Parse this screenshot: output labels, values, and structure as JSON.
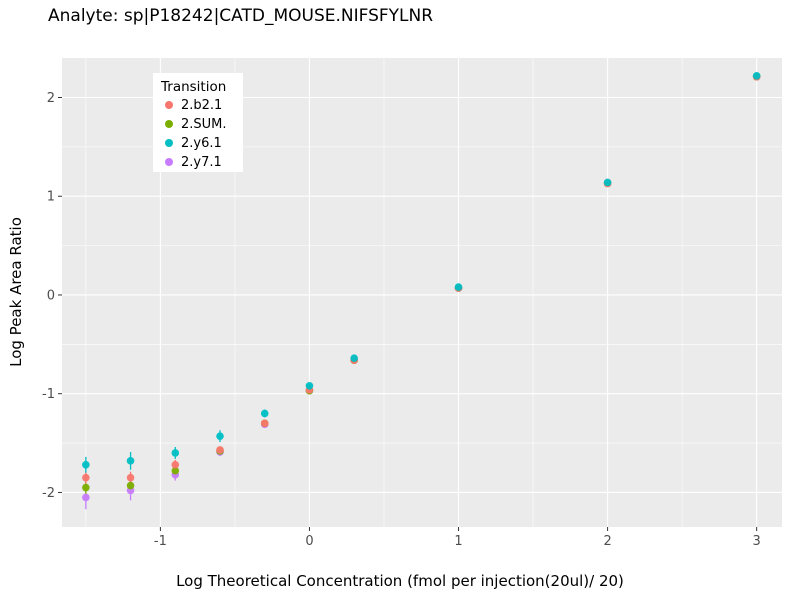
{
  "chart_data": {
    "type": "scatter",
    "title": "Analyte: sp|P18242|CATD_MOUSE.NIFSFYLNR",
    "xlabel": "Log Theoretical Concentration (fmol per injection(20ul)/ 20)",
    "ylabel": "Log Peak Area Ratio",
    "legend_title": "Transition",
    "legend_position": "inside-top-left",
    "grid": "on",
    "panel_background": "#EBEBEB",
    "gridline_color": "#FFFFFF",
    "xlim": [
      -1.66,
      3.17
    ],
    "ylim": [
      -2.35,
      2.4
    ],
    "x_ticks": [
      -1,
      0,
      1,
      2,
      3
    ],
    "y_ticks": [
      -2,
      -1,
      0,
      1,
      2
    ],
    "x": [
      -1.5,
      -1.2,
      -0.9,
      -0.6,
      -0.3,
      0.0,
      0.3,
      1.0,
      2.0,
      3.0
    ],
    "series": [
      {
        "name": "2.b2.1",
        "color": "#F8766D",
        "values": [
          -1.85,
          -1.85,
          -1.72,
          -1.57,
          -1.3,
          -0.96,
          -0.66,
          0.07,
          1.13,
          2.21
        ],
        "errors": [
          0.06,
          0.06,
          0.05,
          0.03,
          0.02,
          0.02,
          0.01,
          0.01,
          0.01,
          0.01
        ]
      },
      {
        "name": "2.SUM.",
        "color": "#7CAE00",
        "values": [
          -1.95,
          -1.93,
          -1.78,
          -1.58,
          -1.3,
          -0.97,
          -0.66,
          0.07,
          1.13,
          2.21
        ],
        "errors": [
          0.07,
          0.07,
          0.05,
          0.03,
          0.02,
          0.02,
          0.01,
          0.01,
          0.01,
          0.01
        ]
      },
      {
        "name": "2.y6.1",
        "color": "#00BFC4",
        "values": [
          -1.72,
          -1.68,
          -1.6,
          -1.43,
          -1.2,
          -0.92,
          -0.64,
          0.08,
          1.14,
          2.22
        ],
        "errors": [
          0.08,
          0.09,
          0.06,
          0.06,
          0.04,
          0.02,
          0.01,
          0.01,
          0.01,
          0.01
        ]
      },
      {
        "name": "2.y7.1",
        "color": "#C77CFF",
        "values": [
          -2.05,
          -1.98,
          -1.82,
          -1.59,
          -1.31,
          -0.97,
          -0.66,
          0.07,
          1.13,
          2.21
        ],
        "errors": [
          0.12,
          0.1,
          0.06,
          0.04,
          0.02,
          0.02,
          0.01,
          0.01,
          0.01,
          0.01
        ]
      }
    ]
  }
}
